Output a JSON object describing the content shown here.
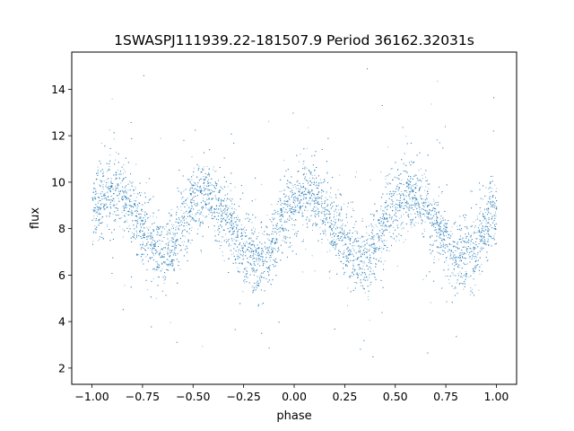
{
  "chart_data": {
    "type": "scatter",
    "title": "1SWASPJ111939.22-181507.9 Period 36162.32031s",
    "xlabel": "phase",
    "ylabel": "flux",
    "xlim": [
      -1.1,
      1.1
    ],
    "ylim": [
      1.3,
      15.6
    ],
    "xticks": [
      -1.0,
      -0.75,
      -0.5,
      -0.25,
      0.0,
      0.25,
      0.5,
      0.75,
      1.0
    ],
    "xtick_labels": [
      "−1.00",
      "−0.75",
      "−0.50",
      "−0.25",
      "0.00",
      "0.25",
      "0.50",
      "0.75",
      "1.00"
    ],
    "yticks": [
      2,
      4,
      6,
      8,
      10,
      12,
      14
    ],
    "ytick_labels": [
      "2",
      "4",
      "6",
      "8",
      "10",
      "12",
      "14"
    ],
    "grid": false,
    "color": "#1f77b4",
    "series": [
      {
        "x": [
          -1.0,
          -0.95,
          -0.9,
          -0.85,
          -0.8,
          -0.75,
          -0.7,
          -0.65,
          -0.6,
          -0.55,
          -0.5,
          -0.45,
          -0.4,
          -0.35,
          -0.3,
          -0.25,
          -0.2,
          -0.15,
          -0.1,
          -0.05,
          0.0,
          0.05,
          0.1,
          0.15,
          0.2,
          0.25,
          0.3,
          0.35,
          0.4,
          0.45,
          0.5,
          0.55,
          0.6,
          0.65,
          0.7,
          0.75,
          0.8,
          0.85,
          0.9,
          0.95,
          1.0
        ],
        "y_median": [
          8.8,
          9.3,
          9.5,
          9.3,
          8.8,
          8.0,
          7.3,
          6.9,
          7.4,
          8.4,
          9.2,
          9.5,
          9.3,
          8.6,
          7.8,
          7.2,
          6.8,
          6.5,
          7.4,
          8.7,
          9.3,
          9.4,
          9.3,
          8.8,
          8.0,
          7.3,
          6.9,
          6.6,
          7.3,
          8.5,
          9.2,
          9.5,
          9.4,
          8.9,
          8.1,
          7.4,
          7.0,
          6.7,
          7.2,
          8.3,
          8.8
        ],
        "y_spread": 1.0,
        "y_min": 1.9,
        "y_max": 15.1
      }
    ]
  }
}
